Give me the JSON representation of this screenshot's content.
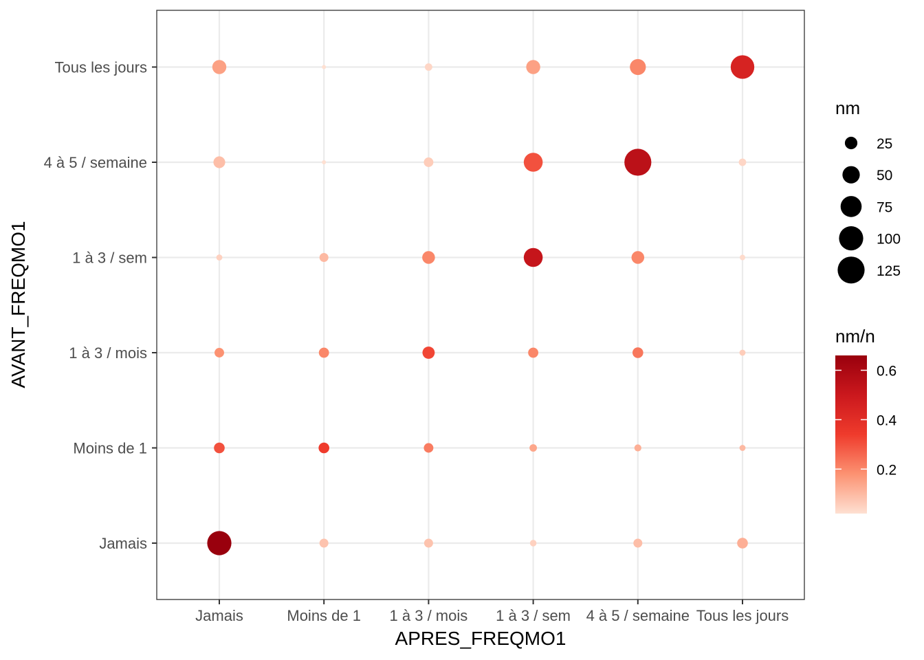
{
  "chart_data": {
    "type": "scatter",
    "xlabel": "APRES_FREQMO1",
    "ylabel": "AVANT_FREQMO1",
    "x_categories": [
      "Jamais",
      "Moins de 1",
      "1 à 3 / mois",
      "1 à 3 / sem",
      "4 à 5 / semaine",
      "Tous les jours"
    ],
    "y_categories": [
      "Jamais",
      "Moins de 1",
      "1 à 3 / mois",
      "1 à 3 / sem",
      "4 à 5 / semaine",
      "Tous les jours"
    ],
    "grid": true,
    "points": [
      {
        "x": "Jamais",
        "y": "Jamais",
        "nm": 100,
        "ratio": 0.66
      },
      {
        "x": "Moins de 1",
        "y": "Jamais",
        "nm": 12,
        "ratio": 0.08
      },
      {
        "x": "1 à 3 / mois",
        "y": "Jamais",
        "nm": 12,
        "ratio": 0.08
      },
      {
        "x": "1 à 3 / sem",
        "y": "Jamais",
        "nm": 6,
        "ratio": 0.05
      },
      {
        "x": "4 à 5 / semaine",
        "y": "Jamais",
        "nm": 12,
        "ratio": 0.09
      },
      {
        "x": "Tous les jours",
        "y": "Jamais",
        "nm": 18,
        "ratio": 0.12
      },
      {
        "x": "Jamais",
        "y": "Moins de 1",
        "nm": 18,
        "ratio": 0.3
      },
      {
        "x": "Moins de 1",
        "y": "Moins de 1",
        "nm": 18,
        "ratio": 0.34
      },
      {
        "x": "1 à 3 / mois",
        "y": "Moins de 1",
        "nm": 14,
        "ratio": 0.22
      },
      {
        "x": "1 à 3 / sem",
        "y": "Moins de 1",
        "nm": 8,
        "ratio": 0.14
      },
      {
        "x": "4 à 5 / semaine",
        "y": "Moins de 1",
        "nm": 7,
        "ratio": 0.12
      },
      {
        "x": "Tous les jours",
        "y": "Moins de 1",
        "nm": 5,
        "ratio": 0.1
      },
      {
        "x": "Jamais",
        "y": "1 à 3 / mois",
        "nm": 14,
        "ratio": 0.18
      },
      {
        "x": "Moins de 1",
        "y": "1 à 3 / mois",
        "nm": 16,
        "ratio": 0.2
      },
      {
        "x": "1 à 3 / mois",
        "y": "1 à 3 / mois",
        "nm": 24,
        "ratio": 0.32
      },
      {
        "x": "1 à 3 / sem",
        "y": "1 à 3 / mois",
        "nm": 16,
        "ratio": 0.2
      },
      {
        "x": "4 à 5 / semaine",
        "y": "1 à 3 / mois",
        "nm": 18,
        "ratio": 0.23
      },
      {
        "x": "Tous les jours",
        "y": "1 à 3 / mois",
        "nm": 5,
        "ratio": 0.06
      },
      {
        "x": "Jamais",
        "y": "1 à 3 / sem",
        "nm": 5,
        "ratio": 0.05
      },
      {
        "x": "Moins de 1",
        "y": "1 à 3 / sem",
        "nm": 12,
        "ratio": 0.1
      },
      {
        "x": "1 à 3 / mois",
        "y": "1 à 3 / sem",
        "nm": 26,
        "ratio": 0.2
      },
      {
        "x": "1 à 3 / sem",
        "y": "1 à 3 / sem",
        "nm": 60,
        "ratio": 0.52
      },
      {
        "x": "4 à 5 / semaine",
        "y": "1 à 3 / sem",
        "nm": 26,
        "ratio": 0.2
      },
      {
        "x": "Tous les jours",
        "y": "1 à 3 / sem",
        "nm": 4,
        "ratio": 0.03
      },
      {
        "x": "Jamais",
        "y": "4 à 5 / semaine",
        "nm": 22,
        "ratio": 0.09
      },
      {
        "x": "Moins de 1",
        "y": "4 à 5 / semaine",
        "nm": 2,
        "ratio": 0.02
      },
      {
        "x": "1 à 3 / mois",
        "y": "4 à 5 / semaine",
        "nm": 14,
        "ratio": 0.06
      },
      {
        "x": "1 à 3 / sem",
        "y": "4 à 5 / semaine",
        "nm": 60,
        "ratio": 0.3
      },
      {
        "x": "4 à 5 / semaine",
        "y": "4 à 5 / semaine",
        "nm": 125,
        "ratio": 0.55
      },
      {
        "x": "Tous les jours",
        "y": "4 à 5 / semaine",
        "nm": 8,
        "ratio": 0.04
      },
      {
        "x": "Jamais",
        "y": "Tous les jours",
        "nm": 32,
        "ratio": 0.15
      },
      {
        "x": "Moins de 1",
        "y": "Tous les jours",
        "nm": 2,
        "ratio": 0.02
      },
      {
        "x": "1 à 3 / mois",
        "y": "Tous les jours",
        "nm": 8,
        "ratio": 0.04
      },
      {
        "x": "1 à 3 / sem",
        "y": "Tous les jours",
        "nm": 32,
        "ratio": 0.15
      },
      {
        "x": "4 à 5 / semaine",
        "y": "Tous les jours",
        "nm": 42,
        "ratio": 0.2
      },
      {
        "x": "Tous les jours",
        "y": "Tous les jours",
        "nm": 95,
        "ratio": 0.45
      }
    ],
    "legend_size": {
      "title": "nm",
      "values": [
        25,
        50,
        75,
        100,
        125
      ]
    },
    "legend_color": {
      "title": "nm/n",
      "ticks": [
        0.2,
        0.4,
        0.6
      ],
      "range": [
        0.02,
        0.66
      ]
    },
    "color_scale": [
      "#fee0d2",
      "#fc9272",
      "#ef3b2c",
      "#cb181d",
      "#99000d"
    ],
    "legend_placement": "right"
  }
}
